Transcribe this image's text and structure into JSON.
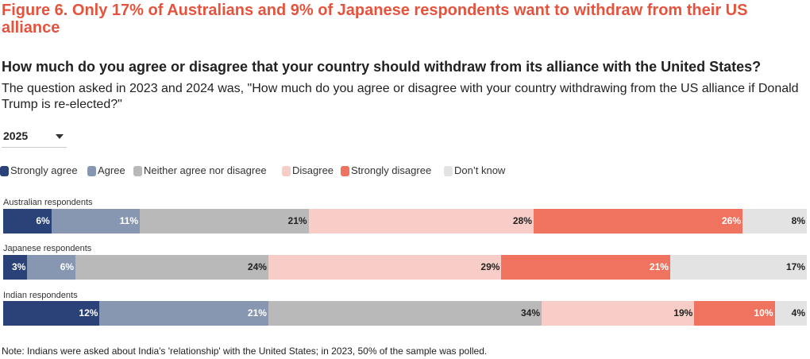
{
  "title": "Figure 6. Only 17% of Australians and 9% of Japanese respondents want to withdraw from their US alliance",
  "subtitle": "How much do you agree or disagree that your country should withdraw from its alliance with the United States?",
  "description": "The question asked in 2023 and 2024 was, \"How much do you agree or disagree with your country withdrawing from the US alliance if Donald Trump is re-elected?\"",
  "year_selector": {
    "selected": "2025"
  },
  "note": "Note: Indians were asked about India's 'relationship' with the United States; in 2023, 50% of the sample was polled.",
  "chart_data": {
    "type": "bar",
    "orientation": "horizontal",
    "stacked": true,
    "percent": true,
    "categories": [
      "Australian respondents",
      "Japanese respondents",
      "Indian respondents"
    ],
    "series": [
      {
        "name": "Strongly agree",
        "color": "#2b4278",
        "label_color": "#ffffff",
        "values": [
          6,
          3,
          12
        ]
      },
      {
        "name": "Agree",
        "color": "#8796b1",
        "label_color": "#ffffff",
        "values": [
          11,
          6,
          21
        ]
      },
      {
        "name": "Neither agree nor disagree",
        "color": "#b9b9b9",
        "label_color": "#222222",
        "values": [
          21,
          24,
          34
        ]
      },
      {
        "name": "Disagree",
        "color": "#f8cdc7",
        "label_color": "#222222",
        "values": [
          28,
          29,
          19
        ]
      },
      {
        "name": "Strongly disagree",
        "color": "#f07360",
        "label_color": "#ffffff",
        "values": [
          26,
          21,
          10
        ]
      },
      {
        "name": "Don’t know",
        "color": "#e3e3e3",
        "label_color": "#222222",
        "values": [
          8,
          17,
          4
        ]
      }
    ],
    "value_suffix": "%",
    "legend_position": "top-left"
  }
}
